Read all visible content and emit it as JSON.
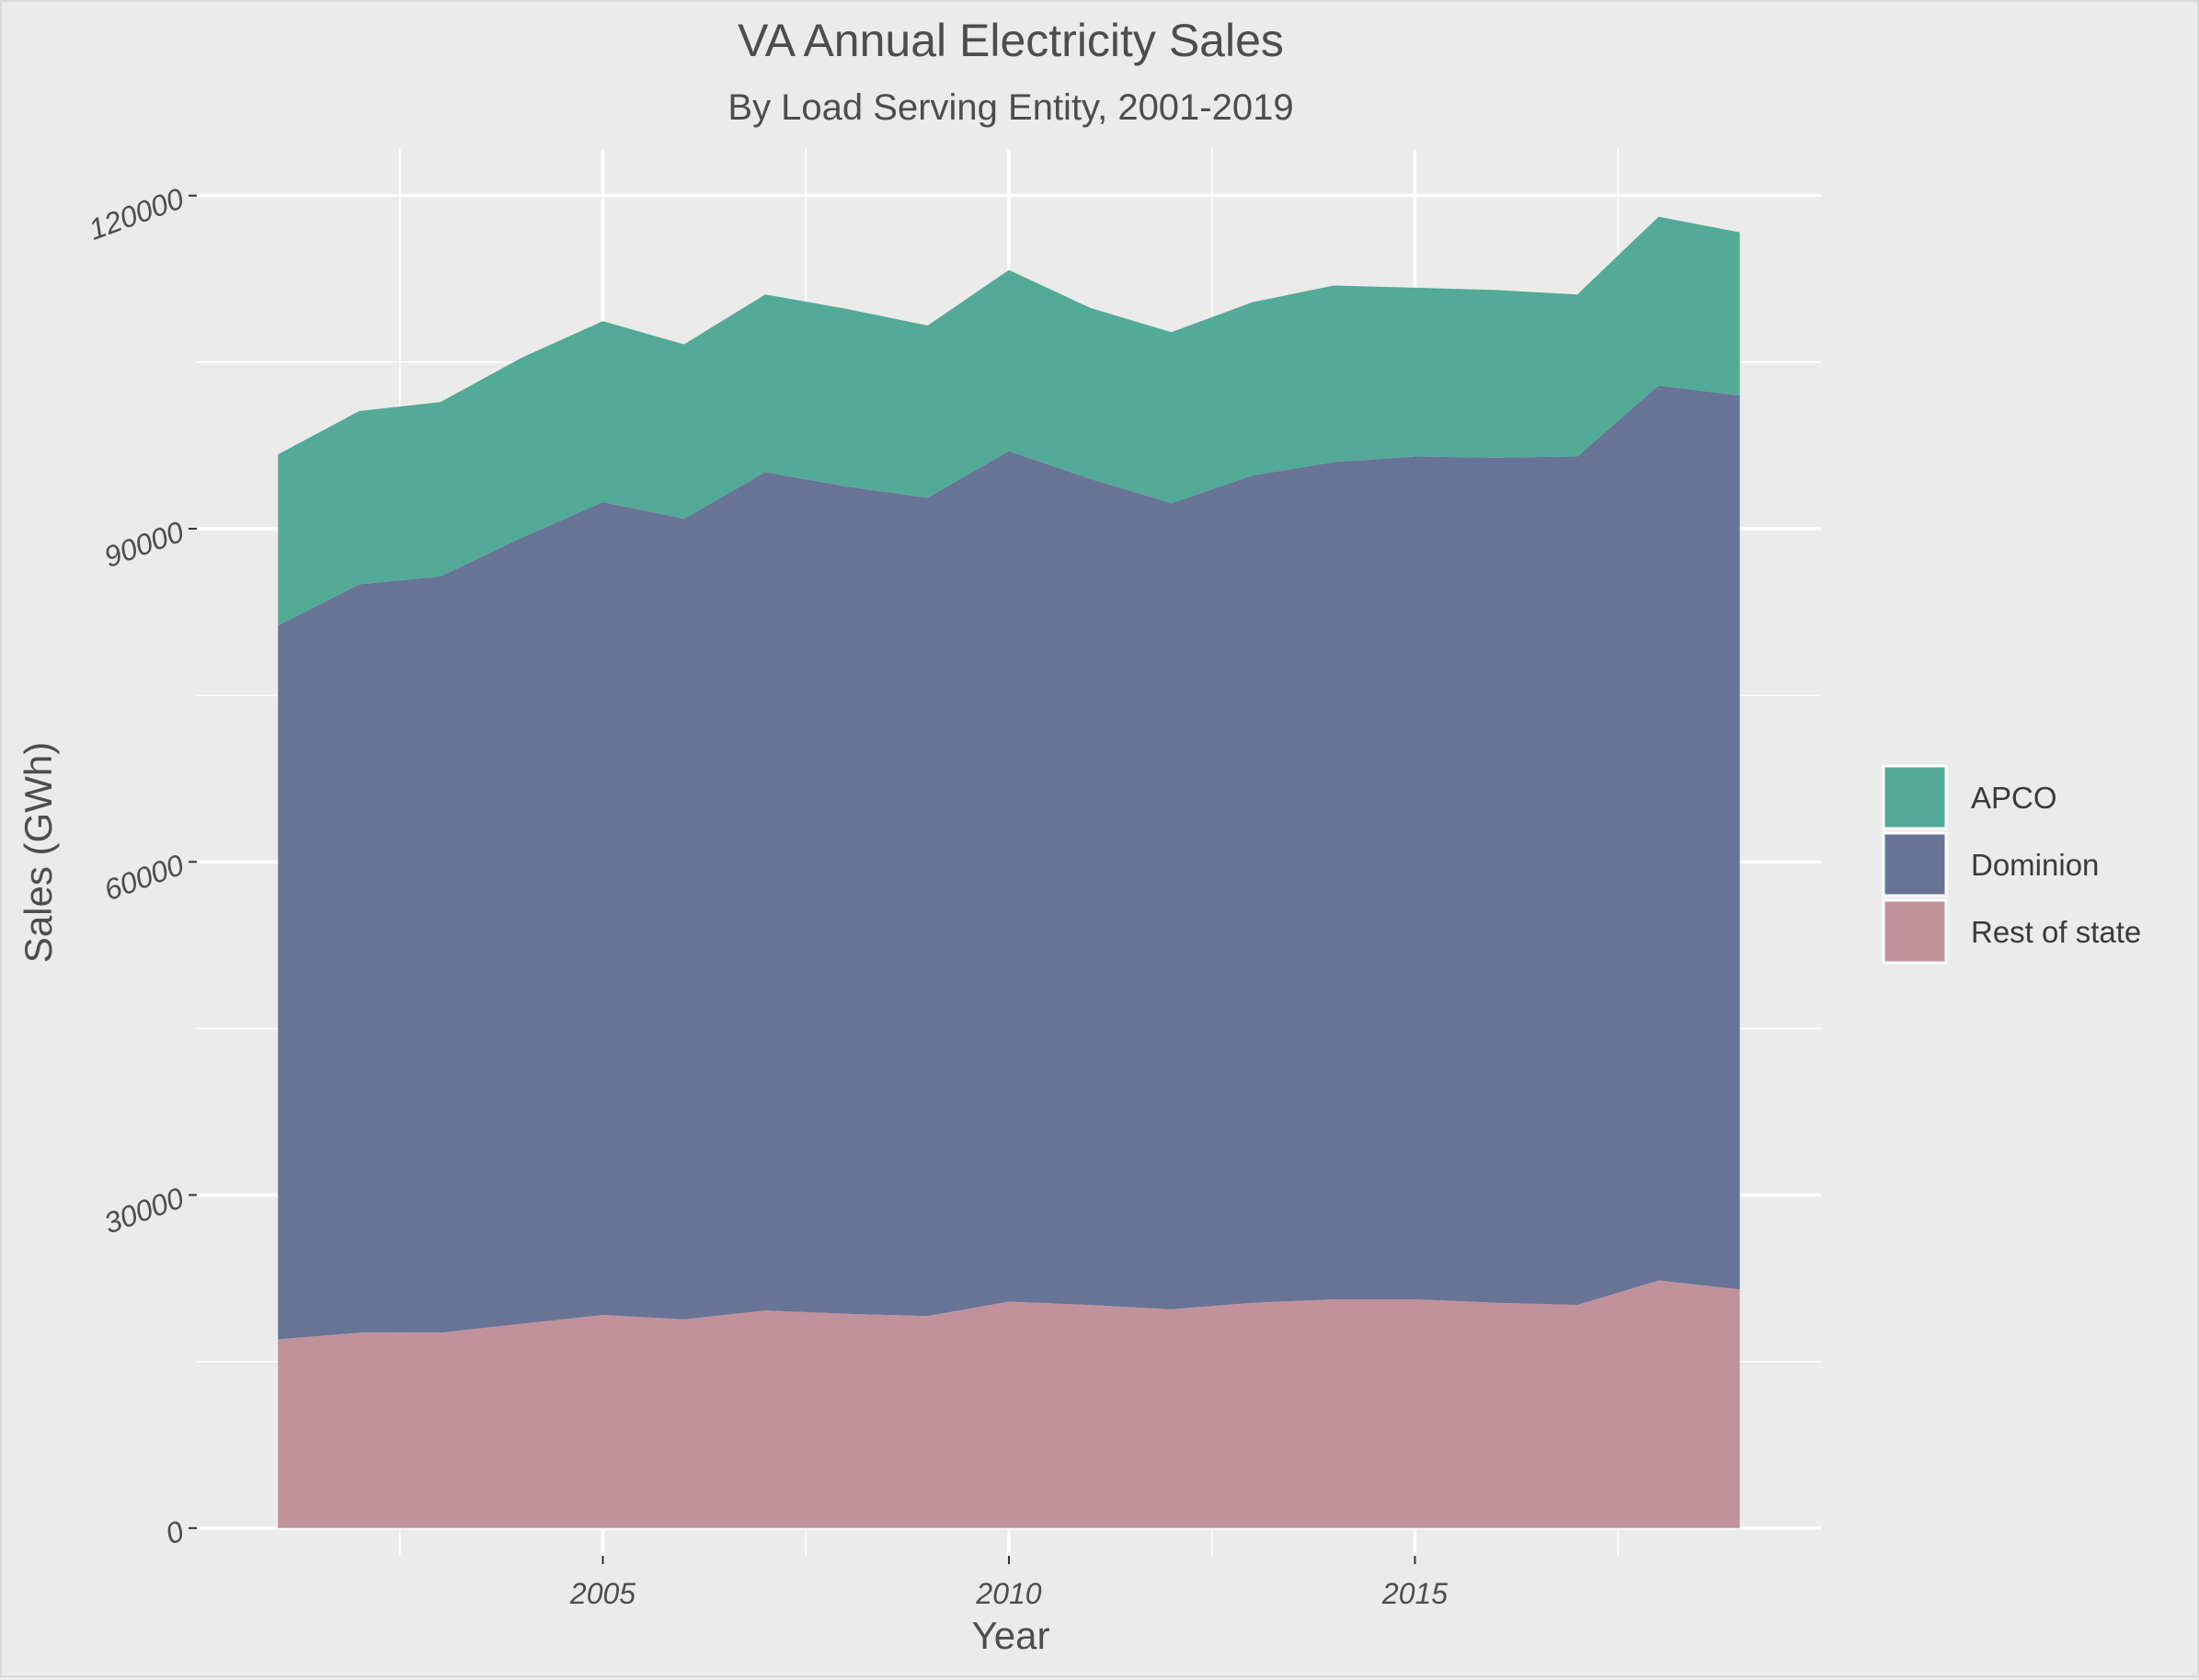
{
  "chart_data": {
    "type": "area",
    "stacked": true,
    "title": "VA Annual Electricity Sales",
    "subtitle": "By Load Serving Entity, 2001-2019",
    "xlabel": "Year",
    "ylabel": "Sales (GWh)",
    "x": [
      2001,
      2002,
      2003,
      2004,
      2005,
      2006,
      2007,
      2008,
      2009,
      2010,
      2011,
      2012,
      2013,
      2014,
      2015,
      2016,
      2017,
      2018,
      2019
    ],
    "xlim": [
      2000.0,
      2020.0
    ],
    "ylim": [
      -2500,
      124200
    ],
    "x_ticks": [
      2005,
      2010,
      2015
    ],
    "x_tick_labels": [
      "2005",
      "2010",
      "2015"
    ],
    "y_ticks": [
      0,
      30000,
      60000,
      90000,
      120000
    ],
    "y_tick_labels": [
      "0",
      "30000",
      "60000",
      "90000",
      "120000"
    ],
    "grid": true,
    "legend_position": "right",
    "series": [
      {
        "name": "Rest of state",
        "color": "#c0929c",
        "values": [
          17000,
          17600,
          17600,
          18400,
          19200,
          18800,
          19600,
          19300,
          19100,
          20400,
          20100,
          19700,
          20300,
          20600,
          20600,
          20300,
          20100,
          22300,
          21500
        ]
      },
      {
        "name": "Dominion",
        "color": "#677496",
        "values": [
          64300,
          67400,
          68100,
          70800,
          73200,
          72100,
          75500,
          74500,
          73700,
          76600,
          74400,
          72600,
          74500,
          75400,
          75900,
          76100,
          76400,
          80600,
          80500
        ]
      },
      {
        "name": "APCO",
        "color": "#53aa96",
        "values": [
          15400,
          15600,
          15700,
          16200,
          16300,
          15700,
          16000,
          16000,
          15500,
          16300,
          15400,
          15400,
          15600,
          15900,
          15200,
          15100,
          14600,
          15200,
          14700
        ]
      }
    ]
  }
}
